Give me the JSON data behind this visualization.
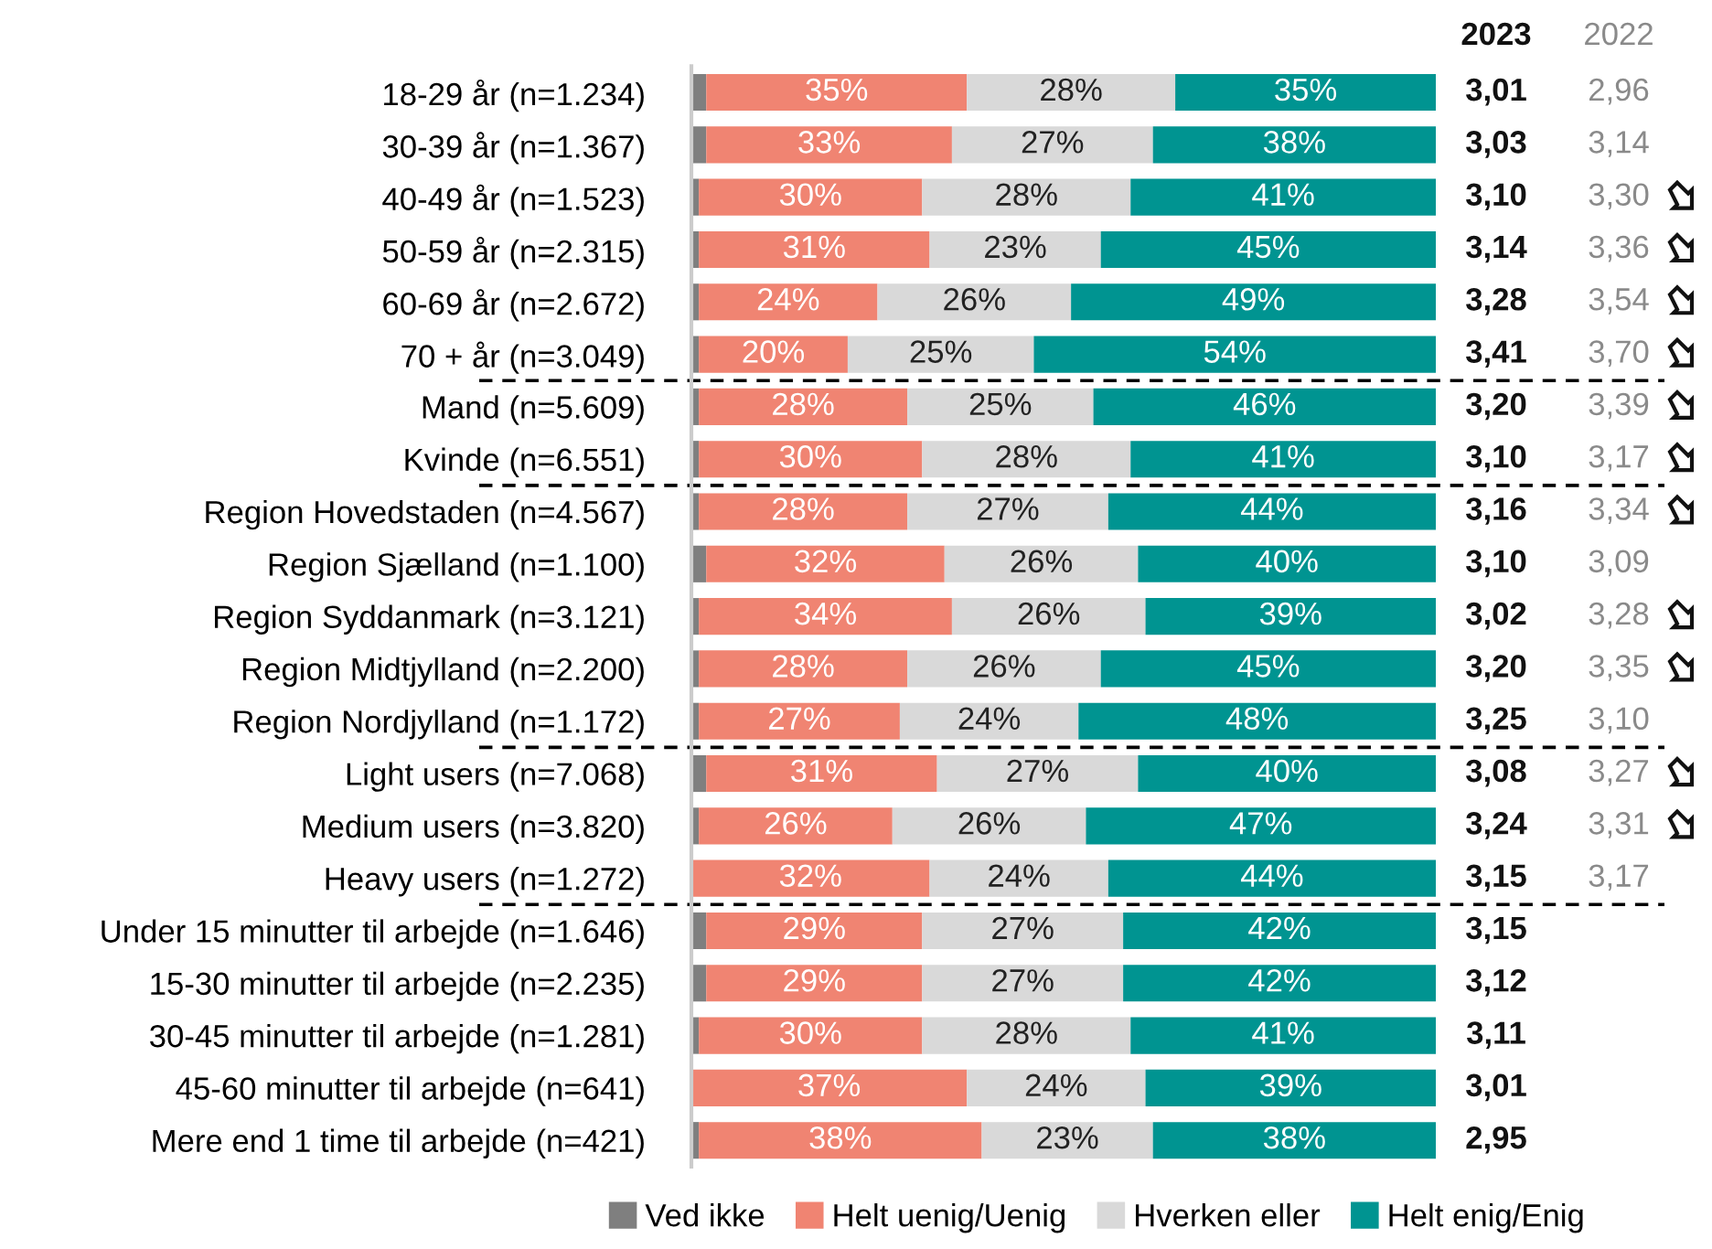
{
  "chart_data": {
    "type": "bar",
    "orientation": "horizontal",
    "stacked": true,
    "categories": [
      "18-29 år (n=1.234)",
      "30-39 år (n=1.367)",
      "40-49 år (n=1.523)",
      "50-59 år (n=2.315)",
      "60-69 år (n=2.672)",
      "70 + år (n=3.049)",
      "Mand (n=5.609)",
      "Kvinde (n=6.551)",
      "Region Hovedstaden (n=4.567)",
      "Region Sjælland (n=1.100)",
      "Region Syddanmark (n=3.121)",
      "Region Midtjylland (n=2.200)",
      "Region Nordjylland (n=1.172)",
      "Light users (n=7.068)",
      "Medium users (n=3.820)",
      "Heavy users (n=1.272)",
      "Under 15 minutter til arbejde (n=1.646)",
      "15-30 minutter til arbejde (n=2.235)",
      "30-45 minutter til arbejde (n=1.281)",
      "45-60 minutter til arbejde (n=641)",
      "Mere end 1 time til arbejde (n=421)"
    ],
    "series": [
      {
        "name": "Ved ikke",
        "color": "#7f7f7f",
        "values": [
          2,
          2,
          1,
          1,
          1,
          1,
          1,
          1,
          1,
          2,
          1,
          1,
          1,
          2,
          1,
          0,
          2,
          2,
          1,
          0,
          1
        ]
      },
      {
        "name": "Helt uenig/Uenig",
        "color": "#f08472",
        "values": [
          35,
          33,
          30,
          31,
          24,
          20,
          28,
          30,
          28,
          32,
          34,
          28,
          27,
          31,
          26,
          32,
          29,
          29,
          30,
          37,
          38
        ],
        "value_labels": [
          "35%",
          "33%",
          "30%",
          "31%",
          "24%",
          "20%",
          "28%",
          "30%",
          "28%",
          "32%",
          "34%",
          "28%",
          "27%",
          "31%",
          "26%",
          "32%",
          "29%",
          "29%",
          "30%",
          "37%",
          "38%"
        ]
      },
      {
        "name": "Hverken eller",
        "color": "#d9d9d9",
        "values": [
          28,
          27,
          28,
          23,
          26,
          25,
          25,
          28,
          27,
          26,
          26,
          26,
          24,
          27,
          26,
          24,
          27,
          27,
          28,
          24,
          23
        ],
        "value_labels": [
          "28%",
          "27%",
          "28%",
          "23%",
          "26%",
          "25%",
          "25%",
          "28%",
          "27%",
          "26%",
          "26%",
          "26%",
          "24%",
          "27%",
          "26%",
          "24%",
          "27%",
          "27%",
          "28%",
          "24%",
          "23%"
        ]
      },
      {
        "name": "Helt enig/Enig",
        "color": "#009491",
        "values": [
          35,
          38,
          41,
          45,
          49,
          54,
          46,
          41,
          44,
          40,
          39,
          45,
          48,
          40,
          47,
          44,
          42,
          42,
          41,
          39,
          38
        ],
        "value_labels": [
          "35%",
          "38%",
          "41%",
          "45%",
          "49%",
          "54%",
          "46%",
          "41%",
          "44%",
          "40%",
          "39%",
          "45%",
          "48%",
          "40%",
          "47%",
          "44%",
          "42%",
          "42%",
          "41%",
          "39%",
          "38%"
        ]
      }
    ],
    "xlim": [
      0,
      100
    ],
    "tick_labels": "y",
    "legend": "bottom",
    "grid": false,
    "annotations": [
      "2023",
      "2022",
      "3,01",
      "2,96",
      "3,03",
      "3,14",
      "3,10",
      "3,30",
      "3,14",
      "3,36",
      "3,28",
      "3,54",
      "3,41",
      "3,70",
      "3,20",
      "3,39",
      "3,10",
      "3,17",
      "3,16",
      "3,34",
      "3,10",
      "3,09",
      "3,02",
      "3,28",
      "3,20",
      "3,35",
      "3,25",
      "3,10",
      "3,08",
      "3,27",
      "3,24",
      "3,31",
      "3,15",
      "3,17",
      "3,15",
      "3,12",
      "3,11",
      "3,01",
      "2,95"
    ]
  }
}
